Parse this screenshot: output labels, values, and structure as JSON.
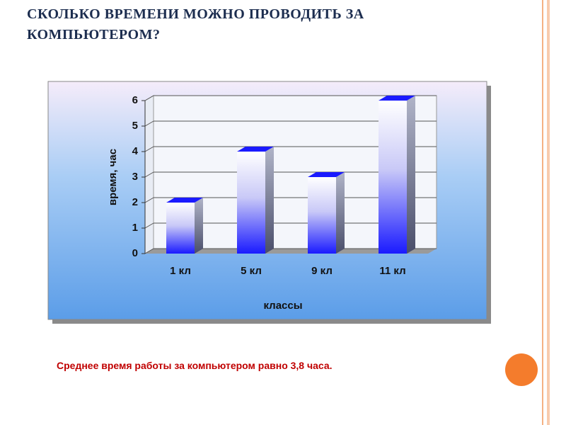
{
  "chart_data": {
    "type": "bar",
    "title": "СКОЛЬКО ВРЕМЕНИ МОЖНО ПРОВОДИТЬ ЗА КОМПЬЮТЕРОМ?",
    "categories": [
      "1 кл",
      "5 кл",
      "9 кл",
      "11 кл"
    ],
    "values": [
      2,
      4,
      3,
      6
    ],
    "color": "#1a1aff",
    "x_label": "классы",
    "y_label": "время, час",
    "ylim": [
      0,
      6
    ],
    "yticks": [
      0,
      1,
      2,
      3,
      4,
      5,
      6
    ],
    "grid": true,
    "annotation": "Среднее время работы за компьютером равно 3,8 часа."
  }
}
